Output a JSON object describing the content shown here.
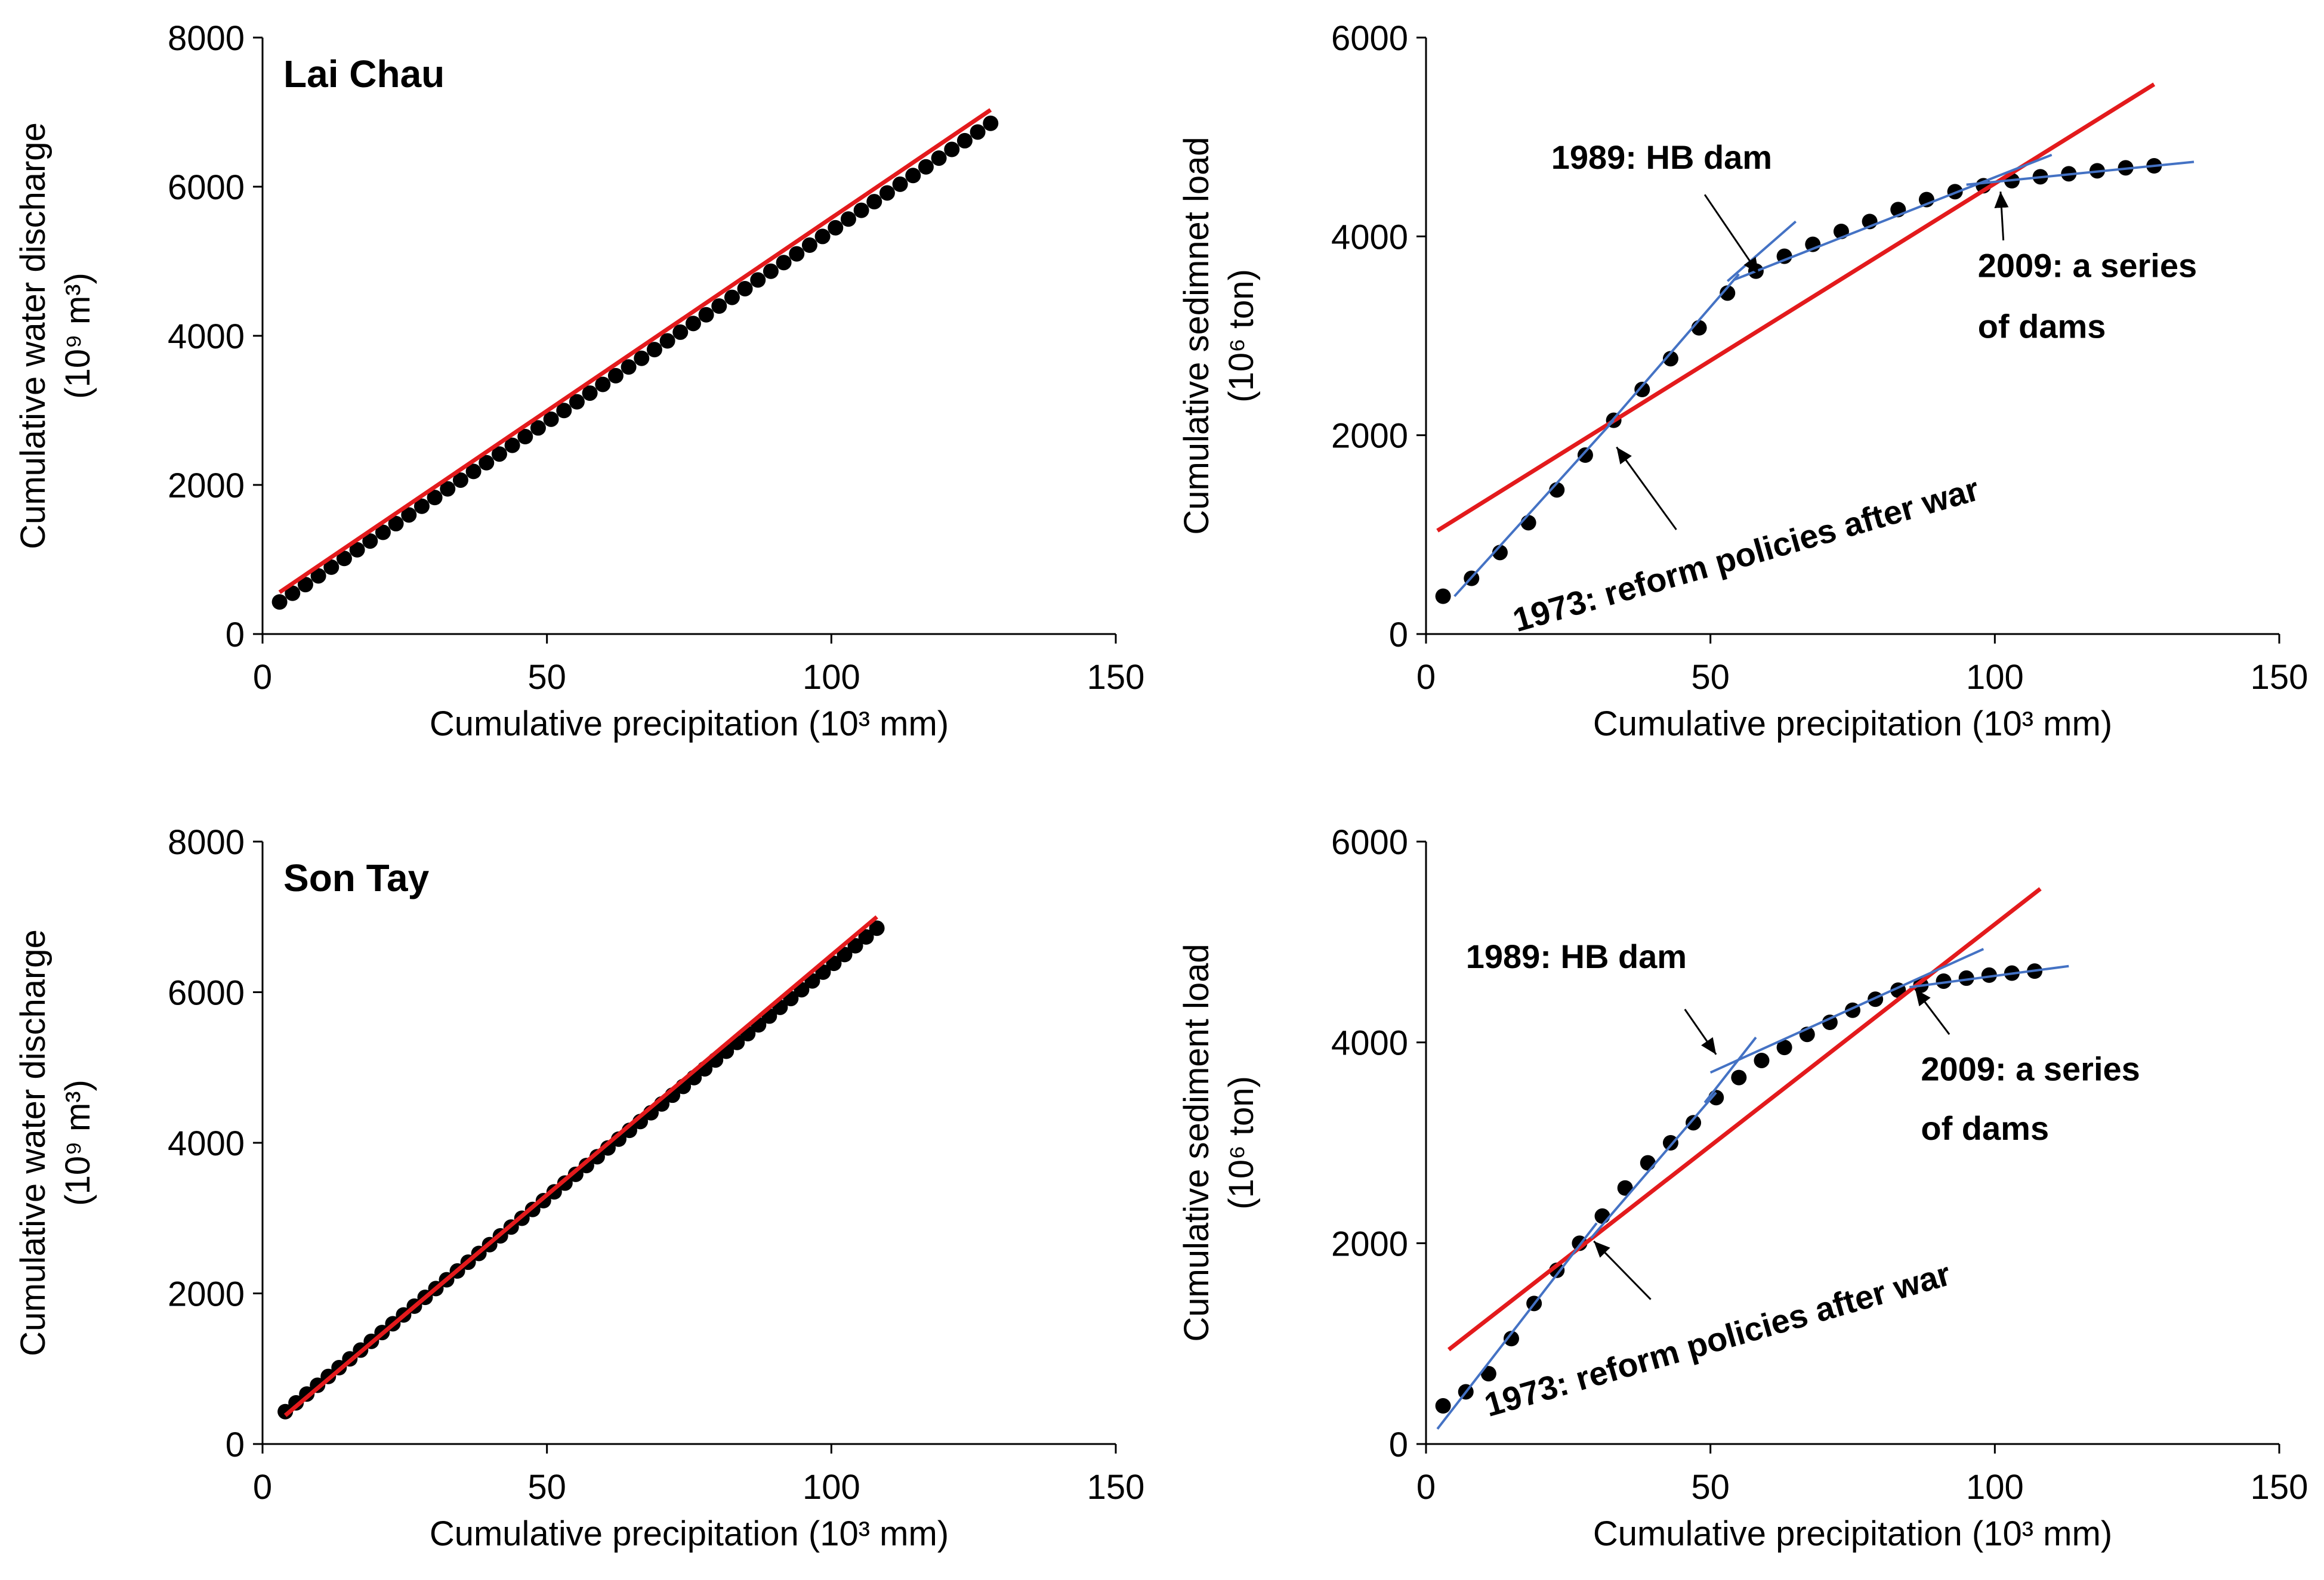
{
  "figure": {
    "colors": {
      "axis": "#000000",
      "points": "#000000",
      "overall_fit": "#e31a1c",
      "segment_fit": "#4472c4",
      "arrow": "#000000"
    }
  },
  "chart_data": [
    {
      "id": "lai-chau-water",
      "type": "scatter",
      "title": "Lai Chau",
      "xlabel": "Cumulative precipitation (10³ mm)",
      "ylabel_line1": "Cumulative water discharge",
      "ylabel_line2": "(10⁹ m³)",
      "xlim": [
        0,
        150
      ],
      "ylim": [
        0,
        8000
      ],
      "xticks": [
        "0",
        "50",
        "100",
        "150"
      ],
      "yticks": [
        "0",
        "2000",
        "4000",
        "6000",
        "8000"
      ],
      "series": [
        {
          "name": "observed",
          "kind": "points",
          "x": [
            3,
            128
          ],
          "y": [
            430,
            6850
          ],
          "n": 56
        },
        {
          "name": "overall trend",
          "kind": "line",
          "color": "red",
          "x": [
            3,
            128
          ],
          "y": [
            560,
            7030
          ]
        }
      ],
      "annotations": []
    },
    {
      "id": "lai-chau-sediment",
      "type": "scatter",
      "title": "",
      "xlabel": "Cumulative precipitation (10³ mm)",
      "ylabel_line1": "Cumulative sedimnet load",
      "ylabel_line2": "(10⁶ ton)",
      "xlim": [
        0,
        150
      ],
      "ylim": [
        0,
        6000
      ],
      "xticks": [
        "0",
        "50",
        "100",
        "150"
      ],
      "yticks": [
        "0",
        "2000",
        "4000",
        "6000"
      ],
      "series": [
        {
          "name": "observed",
          "kind": "points",
          "x": [
            3,
            8,
            13,
            18,
            23,
            28,
            33,
            38,
            43,
            48,
            53,
            58,
            63,
            68,
            73,
            78,
            83,
            88,
            93,
            98,
            103,
            108,
            113,
            118,
            123,
            128
          ],
          "y": [
            380,
            560,
            820,
            1120,
            1450,
            1800,
            2150,
            2460,
            2770,
            3080,
            3430,
            3650,
            3800,
            3920,
            4050,
            4150,
            4270,
            4370,
            4450,
            4510,
            4560,
            4600,
            4630,
            4660,
            4690,
            4710
          ]
        },
        {
          "name": "overall trend",
          "kind": "line",
          "color": "red",
          "x": [
            2,
            128
          ],
          "y": [
            1040,
            5530
          ]
        },
        {
          "name": "segment 1",
          "kind": "line",
          "color": "blue",
          "x": [
            5,
            33
          ],
          "y": [
            380,
            2150
          ]
        },
        {
          "name": "segment 2",
          "kind": "line",
          "color": "blue",
          "x": [
            32,
            55
          ],
          "y": [
            2100,
            3620
          ]
        },
        {
          "name": "segment 3",
          "kind": "line",
          "color": "blue",
          "x": [
            53,
            65
          ],
          "y": [
            3550,
            4150
          ]
        },
        {
          "name": "segment 4",
          "kind": "line",
          "color": "blue",
          "x": [
            54,
            110
          ],
          "y": [
            3560,
            4820
          ]
        },
        {
          "name": "segment 5",
          "kind": "line",
          "color": "blue",
          "x": [
            95,
            135
          ],
          "y": [
            4520,
            4750
          ]
        }
      ],
      "annotations": [
        {
          "text": "1989: HB dam",
          "tx": 22,
          "ty": 4680,
          "rotate": 0,
          "arrow_from": [
            49,
            4420
          ],
          "arrow_to": [
            58.5,
            3620
          ]
        },
        {
          "text": "2009: a series",
          "tx": 97,
          "ty": 3590,
          "rotate": 0,
          "arrow_from": [
            101.5,
            3960
          ],
          "arrow_to": [
            101,
            4450
          ]
        },
        {
          "text": "of dams",
          "tx": 97,
          "ty": 2980,
          "rotate": 0
        },
        {
          "text": "1973: reform policies after war",
          "tx": 16,
          "ty": 20,
          "rotate": -16,
          "arrow_from": [
            44,
            1050
          ],
          "arrow_to": [
            33.5,
            1880
          ]
        }
      ]
    },
    {
      "id": "son-tay-water",
      "type": "scatter",
      "title": "Son Tay",
      "xlabel": "Cumulative precipitation (10³ mm)",
      "ylabel_line1": "Cumulative water discharge",
      "ylabel_line2": "(10⁹ m³)",
      "xlim": [
        0,
        150
      ],
      "ylim": [
        0,
        8000
      ],
      "xticks": [
        "0",
        "50",
        "100",
        "150"
      ],
      "yticks": [
        "0",
        "2000",
        "4000",
        "6000",
        "8000"
      ],
      "series": [
        {
          "name": "observed",
          "kind": "points",
          "x": [
            4,
            108
          ],
          "y": [
            430,
            6850
          ],
          "n": 56
        },
        {
          "name": "overall trend",
          "kind": "line",
          "color": "red",
          "x": [
            4,
            108
          ],
          "y": [
            380,
            7000
          ]
        }
      ],
      "annotations": []
    },
    {
      "id": "son-tay-sediment",
      "type": "scatter",
      "title": "",
      "xlabel": "Cumulative precipitation (10³ mm)",
      "ylabel_line1": "Cumulative sediment load",
      "ylabel_line2": "(10⁶ ton)",
      "xlim": [
        0,
        150
      ],
      "ylim": [
        0,
        6000
      ],
      "xticks": [
        "0",
        "50",
        "100",
        "150"
      ],
      "yticks": [
        "0",
        "2000",
        "4000",
        "6000"
      ],
      "series": [
        {
          "name": "observed",
          "kind": "points",
          "x": [
            3,
            7,
            11,
            15,
            19,
            23,
            27,
            31,
            35,
            39,
            43,
            47,
            51,
            55,
            59,
            63,
            67,
            71,
            75,
            79,
            83,
            87,
            91,
            95,
            99,
            103,
            107
          ],
          "y": [
            380,
            520,
            700,
            1050,
            1400,
            1730,
            2000,
            2270,
            2550,
            2800,
            3000,
            3200,
            3450,
            3650,
            3820,
            3950,
            4080,
            4200,
            4320,
            4430,
            4520,
            4570,
            4610,
            4640,
            4670,
            4690,
            4710
          ]
        },
        {
          "name": "overall trend",
          "kind": "line",
          "color": "red",
          "x": [
            4,
            108
          ],
          "y": [
            940,
            5530
          ]
        },
        {
          "name": "segment 1",
          "kind": "line",
          "color": "blue",
          "x": [
            2,
            30
          ],
          "y": [
            150,
            2200
          ]
        },
        {
          "name": "segment 2",
          "kind": "line",
          "color": "blue",
          "x": [
            29,
            51
          ],
          "y": [
            2050,
            3500
          ]
        },
        {
          "name": "segment 3",
          "kind": "line",
          "color": "blue",
          "x": [
            49,
            58
          ],
          "y": [
            3400,
            4050
          ]
        },
        {
          "name": "segment 4",
          "kind": "line",
          "color": "blue",
          "x": [
            50,
            98
          ],
          "y": [
            3700,
            4930
          ]
        },
        {
          "name": "segment 5",
          "kind": "line",
          "color": "blue",
          "x": [
            85,
            113
          ],
          "y": [
            4550,
            4760
          ]
        }
      ],
      "annotations": [
        {
          "text": "1989: HB dam",
          "tx": 7,
          "ty": 4740,
          "rotate": 0,
          "arrow_from": [
            45.5,
            4330
          ],
          "arrow_to": [
            51,
            3880
          ]
        },
        {
          "text": "2009: a series",
          "tx": 87,
          "ty": 3620,
          "rotate": 0,
          "arrow_from": [
            92,
            4080
          ],
          "arrow_to": [
            86,
            4530
          ]
        },
        {
          "text": "of dams",
          "tx": 87,
          "ty": 3030,
          "rotate": 0
        },
        {
          "text": "1973: reform policies after war",
          "tx": 11,
          "ty": 270,
          "rotate": -16,
          "arrow_from": [
            39.5,
            1440
          ],
          "arrow_to": [
            29.5,
            2020
          ]
        }
      ]
    }
  ]
}
